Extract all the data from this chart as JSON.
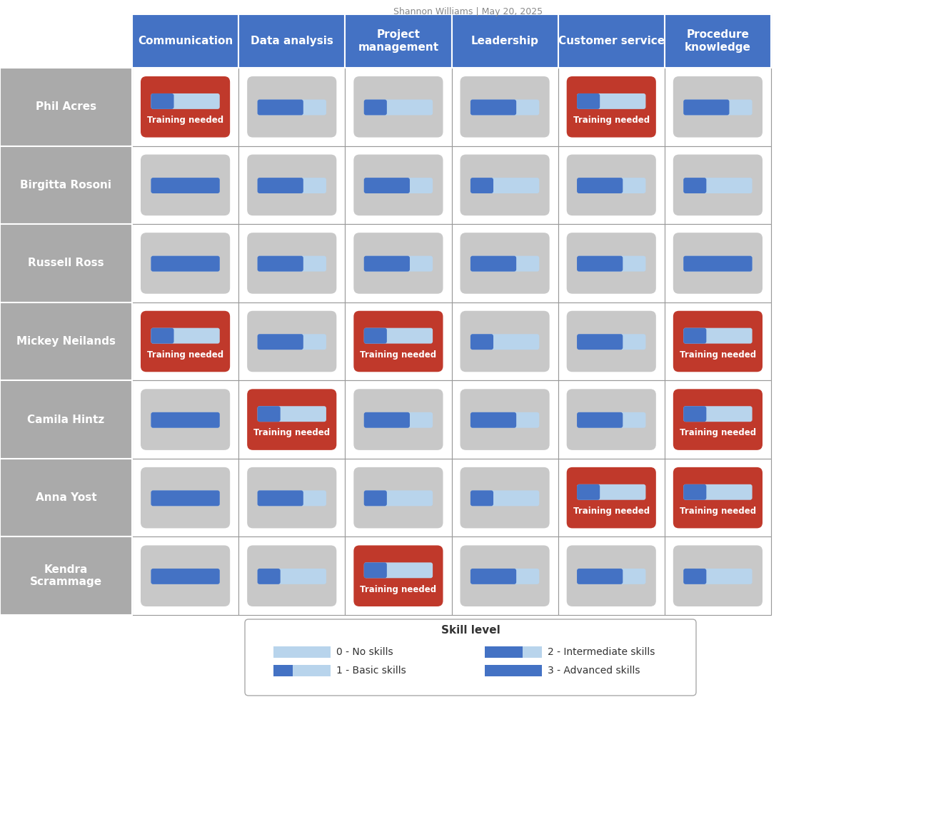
{
  "title": "Shannon Williams | May 20, 2025",
  "col_headers": [
    "Communication",
    "Data analysis",
    "Project\nmanagement",
    "Leadership",
    "Customer service",
    "Procedure\nknowledge"
  ],
  "row_headers": [
    "Phil Acres",
    "Birgitta Rosoni",
    "Russell Ross",
    "Mickey Neilands",
    "Camila Hintz",
    "Anna Yost",
    "Kendra\nScrammage"
  ],
  "header_bg": "#4472c4",
  "header_text": "#ffffff",
  "row_bg": "#aaaaaa",
  "cell_gray": "#c8c8c8",
  "cell_red": "#c0392b",
  "bar_light": "#b8d4ec",
  "bar_dark": "#4472c4",
  "training_text": "Training needed",
  "grid_line": "#888888",
  "legend_title": "Skill level",
  "skill_data": [
    [
      {
        "level": 1,
        "training": true
      },
      {
        "level": 2,
        "training": false
      },
      {
        "level": 1,
        "training": false
      },
      {
        "level": 2,
        "training": false
      },
      {
        "level": 1,
        "training": true
      },
      {
        "level": 2,
        "training": false
      }
    ],
    [
      {
        "level": 3,
        "training": false
      },
      {
        "level": 2,
        "training": false
      },
      {
        "level": 2,
        "training": false
      },
      {
        "level": 1,
        "training": false
      },
      {
        "level": 2,
        "training": false
      },
      {
        "level": 1,
        "training": false
      }
    ],
    [
      {
        "level": 3,
        "training": false
      },
      {
        "level": 2,
        "training": false
      },
      {
        "level": 2,
        "training": false
      },
      {
        "level": 2,
        "training": false
      },
      {
        "level": 2,
        "training": false
      },
      {
        "level": 3,
        "training": false
      }
    ],
    [
      {
        "level": 1,
        "training": true
      },
      {
        "level": 2,
        "training": false
      },
      {
        "level": 1,
        "training": true
      },
      {
        "level": 1,
        "training": false
      },
      {
        "level": 2,
        "training": false
      },
      {
        "level": 1,
        "training": true
      }
    ],
    [
      {
        "level": 3,
        "training": false
      },
      {
        "level": 1,
        "training": true
      },
      {
        "level": 2,
        "training": false
      },
      {
        "level": 2,
        "training": false
      },
      {
        "level": 2,
        "training": false
      },
      {
        "level": 1,
        "training": true
      }
    ],
    [
      {
        "level": 3,
        "training": false
      },
      {
        "level": 2,
        "training": false
      },
      {
        "level": 1,
        "training": false
      },
      {
        "level": 1,
        "training": false
      },
      {
        "level": 1,
        "training": true
      },
      {
        "level": 1,
        "training": true
      }
    ],
    [
      {
        "level": 3,
        "training": false
      },
      {
        "level": 1,
        "training": false
      },
      {
        "level": 1,
        "training": true
      },
      {
        "level": 2,
        "training": false
      },
      {
        "level": 2,
        "training": false
      },
      {
        "level": 1,
        "training": false
      }
    ]
  ]
}
